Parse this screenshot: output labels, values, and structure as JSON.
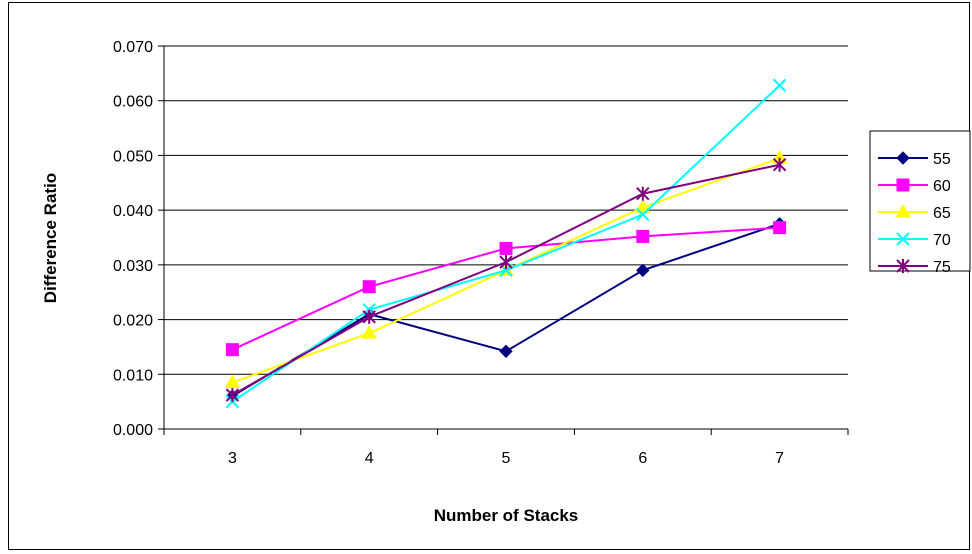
{
  "chart_data": {
    "type": "line",
    "categories": [
      "3",
      "4",
      "5",
      "6",
      "7"
    ],
    "xlabel": "Number of Stacks",
    "ylabel": "Difference Ratio",
    "ylim": [
      0,
      0.07
    ],
    "yticks": [
      "0.000",
      "0.010",
      "0.020",
      "0.030",
      "0.040",
      "0.050",
      "0.060",
      "0.070"
    ],
    "grid": "horizontal",
    "legend": "right",
    "series": [
      {
        "name": "55",
        "color": "#000080",
        "marker": "diamond",
        "values": [
          0.006,
          0.021,
          0.0142,
          0.029,
          0.0375
        ]
      },
      {
        "name": "60",
        "color": "#FF00FF",
        "marker": "square",
        "values": [
          0.0145,
          0.026,
          0.033,
          0.0352,
          0.0368
        ]
      },
      {
        "name": "65",
        "color": "#FFFF00",
        "marker": "triangle",
        "values": [
          0.0085,
          0.0175,
          0.029,
          0.0405,
          0.0495
        ]
      },
      {
        "name": "70",
        "color": "#00FFFF",
        "marker": "x",
        "values": [
          0.005,
          0.0218,
          0.029,
          0.0392,
          0.0628
        ]
      },
      {
        "name": "75",
        "color": "#800080",
        "marker": "star",
        "values": [
          0.0062,
          0.0205,
          0.0305,
          0.043,
          0.0483
        ]
      }
    ]
  }
}
